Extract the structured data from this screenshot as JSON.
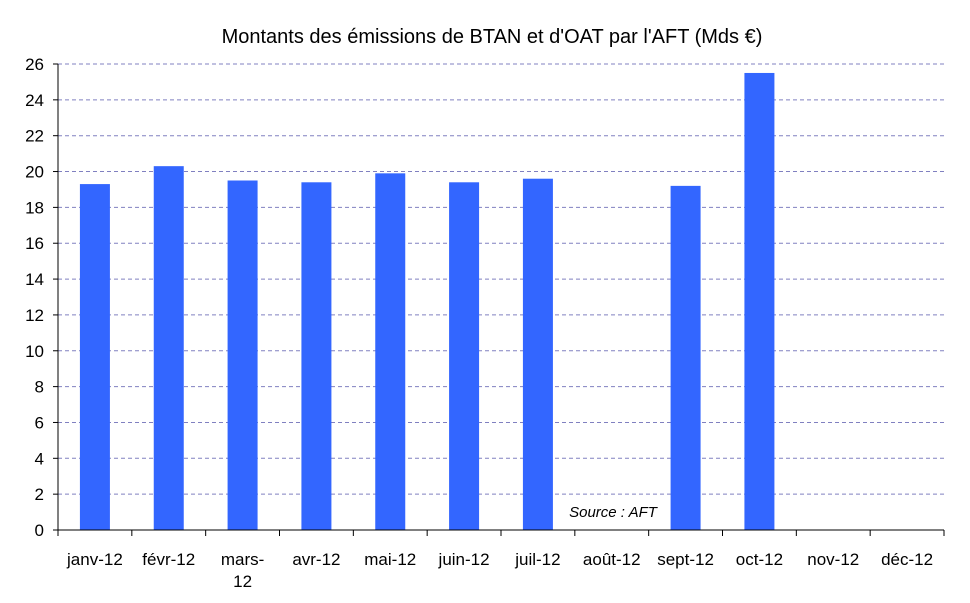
{
  "chart_data": {
    "type": "bar",
    "title": "Montants des émissions de BTAN et d'OAT par l'AFT (Mds €)",
    "xlabel": "",
    "ylabel": "",
    "categories": [
      "janv-12",
      "févr-12",
      "mars-12",
      "avr-12",
      "mai-12",
      "juin-12",
      "juil-12",
      "août-12",
      "sept-12",
      "oct-12",
      "nov-12",
      "déc-12"
    ],
    "category_lines": {
      "mars-12": [
        "mars-",
        "12"
      ]
    },
    "values": [
      19.3,
      20.3,
      19.5,
      19.4,
      19.9,
      19.4,
      19.6,
      null,
      19.2,
      25.5,
      null,
      null
    ],
    "ylim": [
      0,
      26
    ],
    "yticks": [
      "0",
      "2",
      "4",
      "6",
      "8",
      "10",
      "12",
      "14",
      "16",
      "18",
      "20",
      "22",
      "24",
      "26"
    ],
    "grid": true,
    "bar_color": "#3366ff",
    "grid_color": "#8080c0",
    "annotation": "Source : AFT"
  }
}
